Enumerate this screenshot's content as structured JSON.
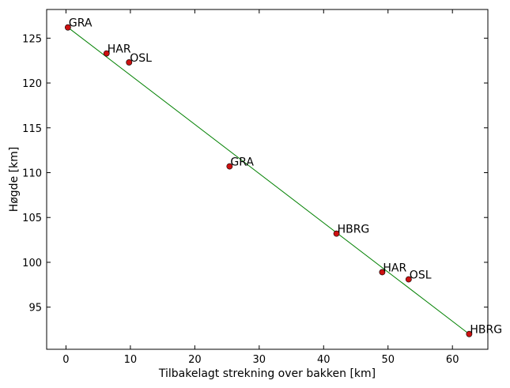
{
  "chart_data": {
    "type": "scatter",
    "title": "",
    "xlabel": "Tilbakelagt strekning over bakken [km]",
    "ylabel": "Høgde [km]",
    "xlim": [
      -3,
      65.5
    ],
    "ylim": [
      90.3,
      128.2
    ],
    "xticks": [
      0,
      10,
      20,
      30,
      40,
      50,
      60
    ],
    "yticks": [
      95,
      100,
      105,
      110,
      115,
      120,
      125
    ],
    "grid": false,
    "colors": {
      "marker": "#cc1111",
      "line": "#008000"
    },
    "points": [
      {
        "x": 0.3,
        "y": 126.2,
        "label": "GRA"
      },
      {
        "x": 6.3,
        "y": 123.3,
        "label": "HAR"
      },
      {
        "x": 9.8,
        "y": 122.3,
        "label": "OSL"
      },
      {
        "x": 25.4,
        "y": 110.7,
        "label": "GRA"
      },
      {
        "x": 42.0,
        "y": 103.2,
        "label": "HBRG"
      },
      {
        "x": 49.1,
        "y": 98.9,
        "label": "HAR"
      },
      {
        "x": 53.2,
        "y": 98.1,
        "label": "OSL"
      },
      {
        "x": 62.6,
        "y": 92.0,
        "label": "HBRG"
      }
    ],
    "fit_line": {
      "x": [
        0.3,
        62.6
      ],
      "y": [
        126.2,
        92.0
      ]
    }
  }
}
